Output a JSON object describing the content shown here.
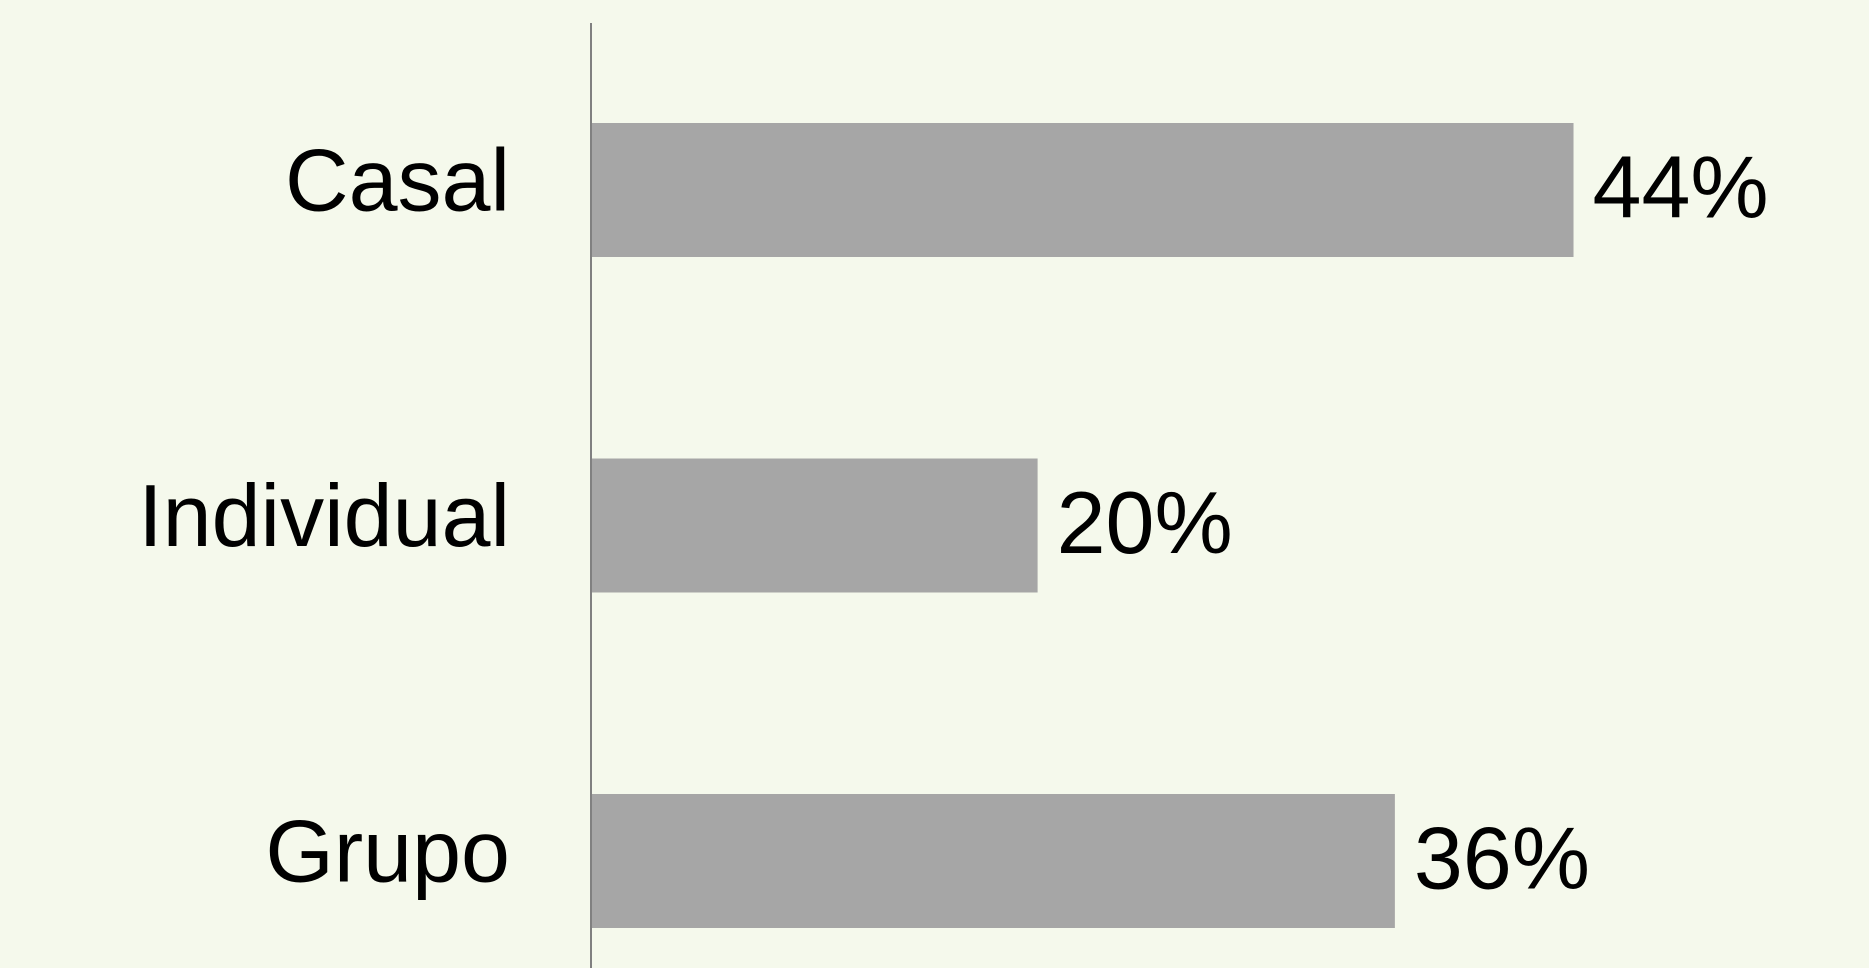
{
  "chart_data": {
    "type": "bar",
    "orientation": "horizontal",
    "categories": [
      "Casal",
      "Individual",
      "Grupo"
    ],
    "values": [
      44,
      20,
      36
    ],
    "value_labels": [
      "44%",
      "20%",
      "36%"
    ],
    "color": "#a6a6a6"
  }
}
